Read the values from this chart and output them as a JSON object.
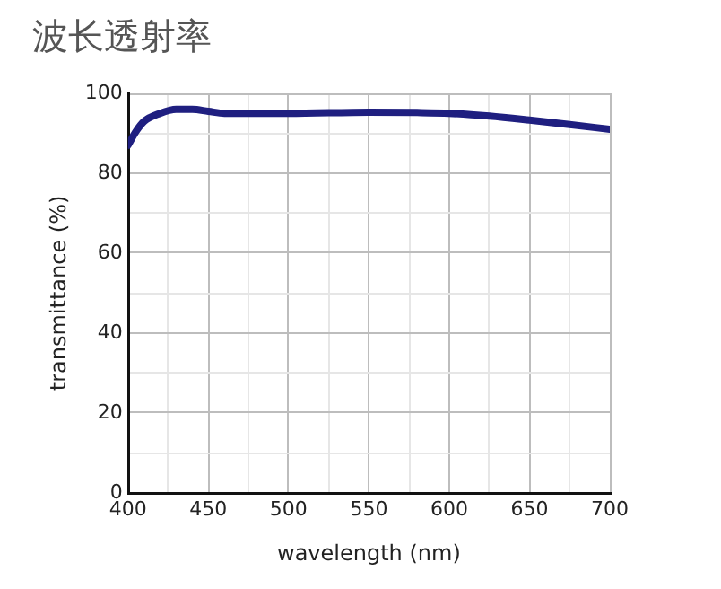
{
  "chart_data": {
    "type": "line",
    "title": "波长透射率",
    "xlabel": "wavelength (nm)",
    "ylabel": "transmittance (%)",
    "x": [
      400,
      405,
      410,
      420,
      430,
      440,
      450,
      460,
      480,
      500,
      550,
      580,
      600,
      625,
      650,
      675,
      700
    ],
    "series": [
      {
        "color": "#1f1f80",
        "values": [
          87,
          90.5,
          93,
          95,
          96,
          96,
          95.5,
          95,
          95,
          95,
          95.3,
          95.2,
          95,
          94.3,
          93.3,
          92.2,
          91
        ]
      }
    ],
    "xlim": [
      400,
      700
    ],
    "ylim": [
      0,
      100
    ],
    "xticks": [
      400,
      {
        "value": 425,
        "label": null
      },
      450,
      {
        "value": 475,
        "label": null
      },
      500,
      {
        "value": 525,
        "label": null
      },
      550,
      {
        "value": 575,
        "label": null
      },
      600,
      {
        "value": 625,
        "label": null
      },
      650,
      {
        "value": 675,
        "label": null
      },
      700
    ],
    "yticks": [
      0,
      {
        "value": 10,
        "label": null
      },
      20,
      {
        "value": 30,
        "label": null
      },
      40,
      {
        "value": 50,
        "label": null
      },
      60,
      {
        "value": 70,
        "label": null
      },
      80,
      {
        "value": 90,
        "label": null
      },
      100
    ],
    "grid": true,
    "legend": false,
    "marker": "none",
    "line_style": "solid"
  }
}
